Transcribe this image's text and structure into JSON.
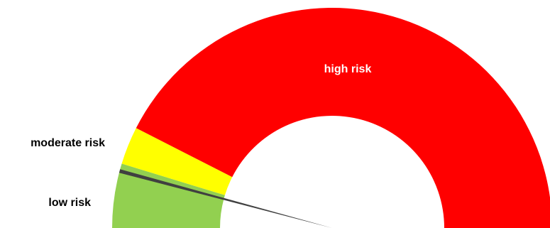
{
  "chart_data": {
    "type": "gauge",
    "range": [
      0,
      180
    ],
    "bands": [
      {
        "label": "low risk",
        "from": 0,
        "to": 15,
        "color": "#92d050"
      },
      {
        "label": "",
        "from": 15,
        "to": 17,
        "color": "#92d050"
      },
      {
        "label": "moderate risk",
        "from": 17,
        "to": 27,
        "color": "#ffff00"
      },
      {
        "label": "high risk",
        "from": 27,
        "to": 180,
        "color": "#ff0000"
      }
    ],
    "needle": {
      "value": 15,
      "color": "#404040"
    },
    "label_colors": {
      "outside": "#000000",
      "inside": "#ffffff"
    }
  }
}
